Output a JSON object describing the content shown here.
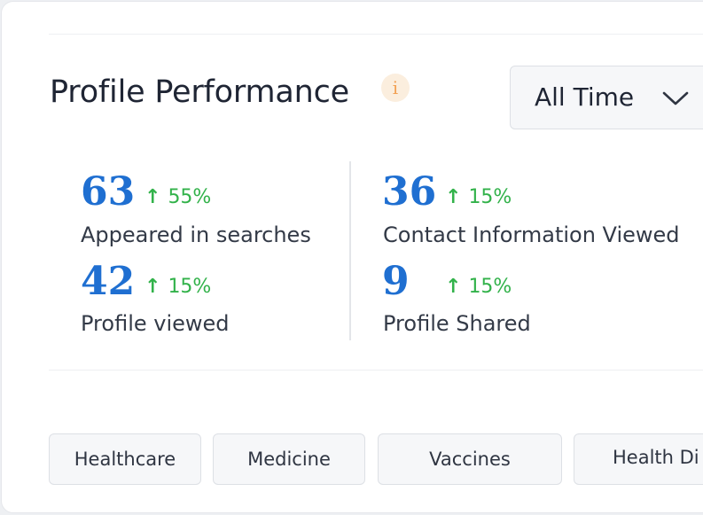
{
  "header": {
    "title": "Profile Performance",
    "info_icon": "i",
    "period_select": {
      "selected": "All Time",
      "icon": "chevron-down-icon"
    }
  },
  "stats": [
    {
      "value": "63",
      "change": "55%",
      "direction": "up",
      "label": "Appeared in searches"
    },
    {
      "value": "36",
      "change": "15%",
      "direction": "up",
      "label": "Contact Information Viewed"
    },
    {
      "value": "42",
      "change": "15%",
      "direction": "up",
      "label": "Profile viewed"
    },
    {
      "value": "9",
      "change": "15%",
      "direction": "up",
      "label": "Profile Shared"
    }
  ],
  "tags": [
    "Healthcare",
    "Medicine",
    "Vaccines",
    "Health Di"
  ],
  "colors": {
    "value": "#1f6fd1",
    "positive": "#32b24a",
    "info_bg": "#fbeede",
    "info_fg": "#f2a154"
  }
}
